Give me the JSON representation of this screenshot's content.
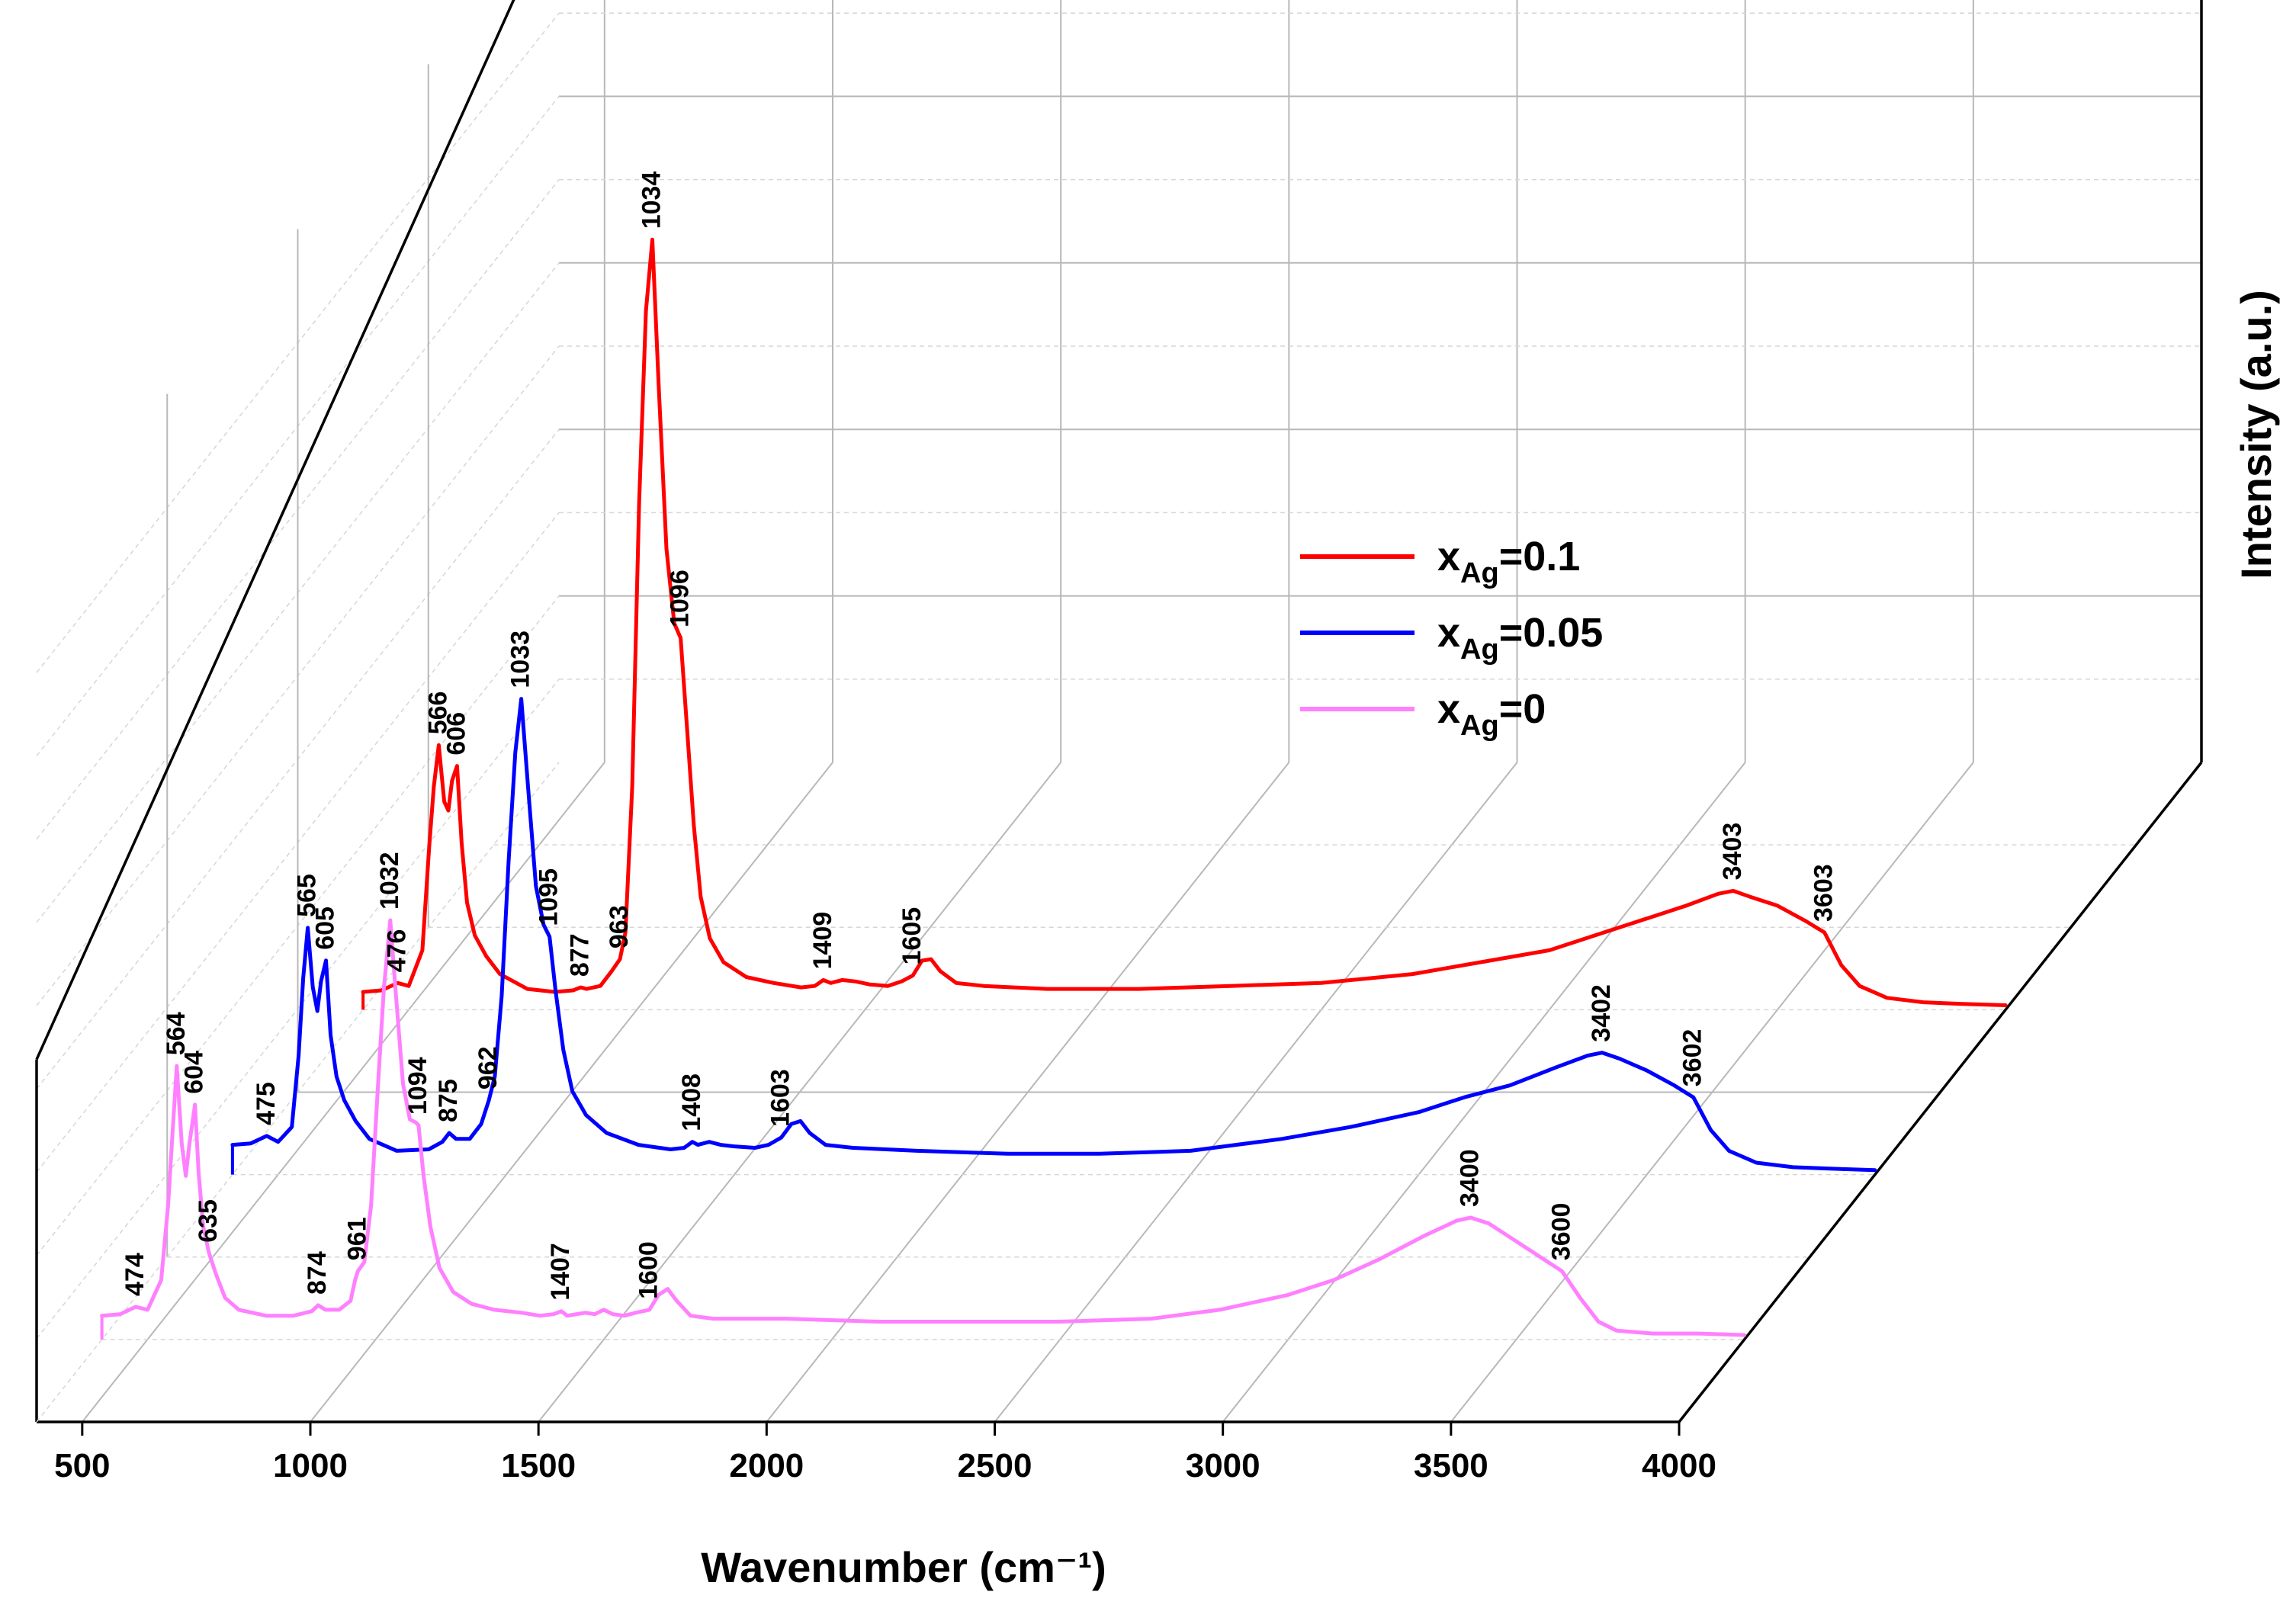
{
  "chart_data": {
    "type": "line",
    "style": "3d-waterfall",
    "xlabel": "Wavenumber (cm⁻¹)",
    "ylabel": "Intensity (a.u.)",
    "xlim": [
      400,
      4000
    ],
    "xticks": [
      500,
      1000,
      1500,
      2000,
      2500,
      3000,
      3500,
      4000
    ],
    "legend_position": "center-right",
    "series": [
      {
        "key": "s0",
        "label": "x",
        "label_sub": "Ag",
        "label_value": "=0",
        "color": "#ff80ff",
        "depth": 0,
        "points": [
          [
            400,
            0.08
          ],
          [
            440,
            0.085
          ],
          [
            474,
            0.11
          ],
          [
            500,
            0.1
          ],
          [
            530,
            0.2
          ],
          [
            545,
            0.45
          ],
          [
            555,
            0.7
          ],
          [
            564,
            0.92
          ],
          [
            575,
            0.66
          ],
          [
            584,
            0.55
          ],
          [
            592,
            0.66
          ],
          [
            604,
            0.79
          ],
          [
            612,
            0.56
          ],
          [
            622,
            0.38
          ],
          [
            635,
            0.29
          ],
          [
            650,
            0.22
          ],
          [
            670,
            0.14
          ],
          [
            700,
            0.1
          ],
          [
            760,
            0.08
          ],
          [
            820,
            0.08
          ],
          [
            860,
            0.095
          ],
          [
            874,
            0.115
          ],
          [
            890,
            0.1
          ],
          [
            920,
            0.1
          ],
          [
            945,
            0.13
          ],
          [
            955,
            0.2
          ],
          [
            961,
            0.23
          ],
          [
            975,
            0.26
          ],
          [
            990,
            0.45
          ],
          [
            1005,
            0.85
          ],
          [
            1018,
            1.18
          ],
          [
            1032,
            1.41
          ],
          [
            1045,
            1.15
          ],
          [
            1060,
            0.86
          ],
          [
            1075,
            0.74
          ],
          [
            1088,
            0.73
          ],
          [
            1094,
            0.72
          ],
          [
            1105,
            0.55
          ],
          [
            1120,
            0.38
          ],
          [
            1140,
            0.24
          ],
          [
            1170,
            0.16
          ],
          [
            1210,
            0.12
          ],
          [
            1260,
            0.1
          ],
          [
            1320,
            0.09
          ],
          [
            1360,
            0.08
          ],
          [
            1390,
            0.085
          ],
          [
            1407,
            0.095
          ],
          [
            1420,
            0.08
          ],
          [
            1440,
            0.085
          ],
          [
            1460,
            0.09
          ],
          [
            1480,
            0.085
          ],
          [
            1500,
            0.1
          ],
          [
            1520,
            0.085
          ],
          [
            1545,
            0.08
          ],
          [
            1570,
            0.09
          ],
          [
            1600,
            0.1
          ],
          [
            1620,
            0.15
          ],
          [
            1640,
            0.17
          ],
          [
            1660,
            0.13
          ],
          [
            1690,
            0.08
          ],
          [
            1740,
            0.07
          ],
          [
            1900,
            0.07
          ],
          [
            2100,
            0.06
          ],
          [
            2300,
            0.06
          ],
          [
            2500,
            0.06
          ],
          [
            2700,
            0.07
          ],
          [
            2850,
            0.1
          ],
          [
            3000,
            0.15
          ],
          [
            3100,
            0.2
          ],
          [
            3200,
            0.27
          ],
          [
            3300,
            0.35
          ],
          [
            3370,
            0.4
          ],
          [
            3400,
            0.41
          ],
          [
            3440,
            0.39
          ],
          [
            3500,
            0.33
          ],
          [
            3560,
            0.27
          ],
          [
            3600,
            0.23
          ],
          [
            3640,
            0.14
          ],
          [
            3680,
            0.06
          ],
          [
            3720,
            0.03
          ],
          [
            3800,
            0.02
          ],
          [
            3900,
            0.02
          ],
          [
            4000,
            0.015
          ]
        ],
        "annotations": [
          {
            "text": "474",
            "x": 474
          },
          {
            "text": "564",
            "x": 564
          },
          {
            "text": "604",
            "x": 604
          },
          {
            "text": "635",
            "x": 635
          },
          {
            "text": "874",
            "x": 874
          },
          {
            "text": "961",
            "x": 961
          },
          {
            "text": "1032",
            "x": 1032
          },
          {
            "text": "1094",
            "x": 1094
          },
          {
            "text": "1407",
            "x": 1407
          },
          {
            "text": "1600",
            "x": 1600
          },
          {
            "text": "3400",
            "x": 3400
          },
          {
            "text": "3600",
            "x": 3600
          }
        ]
      },
      {
        "key": "s1",
        "label": "x",
        "label_sub": "Ag",
        "label_value": "=0.05",
        "color": "#0000ff",
        "depth": 1,
        "points": [
          [
            400,
            0.1
          ],
          [
            440,
            0.105
          ],
          [
            475,
            0.13
          ],
          [
            500,
            0.11
          ],
          [
            530,
            0.16
          ],
          [
            545,
            0.4
          ],
          [
            555,
            0.66
          ],
          [
            565,
            0.83
          ],
          [
            576,
            0.63
          ],
          [
            586,
            0.55
          ],
          [
            594,
            0.65
          ],
          [
            605,
            0.72
          ],
          [
            615,
            0.47
          ],
          [
            628,
            0.33
          ],
          [
            645,
            0.25
          ],
          [
            670,
            0.18
          ],
          [
            700,
            0.12
          ],
          [
            760,
            0.08
          ],
          [
            830,
            0.085
          ],
          [
            860,
            0.11
          ],
          [
            875,
            0.14
          ],
          [
            890,
            0.12
          ],
          [
            920,
            0.12
          ],
          [
            945,
            0.17
          ],
          [
            962,
            0.25
          ],
          [
            975,
            0.33
          ],
          [
            990,
            0.6
          ],
          [
            1005,
            1.05
          ],
          [
            1020,
            1.42
          ],
          [
            1033,
            1.6
          ],
          [
            1048,
            1.3
          ],
          [
            1065,
            0.97
          ],
          [
            1082,
            0.84
          ],
          [
            1095,
            0.8
          ],
          [
            1108,
            0.62
          ],
          [
            1125,
            0.42
          ],
          [
            1145,
            0.28
          ],
          [
            1175,
            0.2
          ],
          [
            1220,
            0.14
          ],
          [
            1290,
            0.1
          ],
          [
            1360,
            0.085
          ],
          [
            1390,
            0.09
          ],
          [
            1408,
            0.11
          ],
          [
            1420,
            0.1
          ],
          [
            1445,
            0.11
          ],
          [
            1470,
            0.1
          ],
          [
            1500,
            0.095
          ],
          [
            1545,
            0.09
          ],
          [
            1575,
            0.1
          ],
          [
            1603,
            0.125
          ],
          [
            1625,
            0.17
          ],
          [
            1645,
            0.18
          ],
          [
            1665,
            0.14
          ],
          [
            1700,
            0.1
          ],
          [
            1760,
            0.09
          ],
          [
            1900,
            0.08
          ],
          [
            2100,
            0.07
          ],
          [
            2300,
            0.07
          ],
          [
            2500,
            0.08
          ],
          [
            2700,
            0.12
          ],
          [
            2850,
            0.16
          ],
          [
            3000,
            0.21
          ],
          [
            3100,
            0.26
          ],
          [
            3200,
            0.3
          ],
          [
            3300,
            0.36
          ],
          [
            3370,
            0.4
          ],
          [
            3402,
            0.41
          ],
          [
            3440,
            0.39
          ],
          [
            3500,
            0.35
          ],
          [
            3560,
            0.3
          ],
          [
            3602,
            0.26
          ],
          [
            3640,
            0.15
          ],
          [
            3680,
            0.08
          ],
          [
            3740,
            0.04
          ],
          [
            3820,
            0.025
          ],
          [
            3900,
            0.02
          ],
          [
            4000,
            0.015
          ]
        ],
        "annotations": [
          {
            "text": "475",
            "x": 475
          },
          {
            "text": "565",
            "x": 565
          },
          {
            "text": "605",
            "x": 605
          },
          {
            "text": "875",
            "x": 875
          },
          {
            "text": "962",
            "x": 962
          },
          {
            "text": "1033",
            "x": 1033
          },
          {
            "text": "1095",
            "x": 1095
          },
          {
            "text": "1408",
            "x": 1408
          },
          {
            "text": "1603",
            "x": 1603
          },
          {
            "text": "3402",
            "x": 3402
          },
          {
            "text": "3602",
            "x": 3602
          }
        ]
      },
      {
        "key": "s2",
        "label": "x",
        "label_sub": "Ag",
        "label_value": "=0.1",
        "color": "#ff0000",
        "depth": 2,
        "points": [
          [
            400,
            0.06
          ],
          [
            440,
            0.065
          ],
          [
            476,
            0.09
          ],
          [
            500,
            0.08
          ],
          [
            530,
            0.2
          ],
          [
            545,
            0.55
          ],
          [
            555,
            0.75
          ],
          [
            566,
            0.89
          ],
          [
            578,
            0.7
          ],
          [
            587,
            0.67
          ],
          [
            595,
            0.77
          ],
          [
            606,
            0.82
          ],
          [
            616,
            0.56
          ],
          [
            628,
            0.36
          ],
          [
            645,
            0.25
          ],
          [
            670,
            0.18
          ],
          [
            700,
            0.12
          ],
          [
            760,
            0.07
          ],
          [
            820,
            0.06
          ],
          [
            860,
            0.065
          ],
          [
            877,
            0.075
          ],
          [
            890,
            0.07
          ],
          [
            920,
            0.08
          ],
          [
            945,
            0.13
          ],
          [
            963,
            0.17
          ],
          [
            975,
            0.26
          ],
          [
            990,
            0.75
          ],
          [
            1005,
            1.7
          ],
          [
            1020,
            2.35
          ],
          [
            1034,
            2.59
          ],
          [
            1048,
            2.1
          ],
          [
            1065,
            1.55
          ],
          [
            1082,
            1.3
          ],
          [
            1096,
            1.25
          ],
          [
            1110,
            0.95
          ],
          [
            1125,
            0.62
          ],
          [
            1140,
            0.38
          ],
          [
            1160,
            0.24
          ],
          [
            1190,
            0.16
          ],
          [
            1240,
            0.11
          ],
          [
            1300,
            0.09
          ],
          [
            1360,
            0.075
          ],
          [
            1390,
            0.08
          ],
          [
            1409,
            0.1
          ],
          [
            1425,
            0.09
          ],
          [
            1450,
            0.1
          ],
          [
            1480,
            0.095
          ],
          [
            1510,
            0.085
          ],
          [
            1550,
            0.08
          ],
          [
            1580,
            0.095
          ],
          [
            1605,
            0.115
          ],
          [
            1625,
            0.165
          ],
          [
            1645,
            0.17
          ],
          [
            1665,
            0.13
          ],
          [
            1700,
            0.09
          ],
          [
            1760,
            0.08
          ],
          [
            1900,
            0.07
          ],
          [
            2100,
            0.07
          ],
          [
            2300,
            0.08
          ],
          [
            2500,
            0.09
          ],
          [
            2700,
            0.12
          ],
          [
            2850,
            0.16
          ],
          [
            3000,
            0.2
          ],
          [
            3100,
            0.25
          ],
          [
            3200,
            0.3
          ],
          [
            3300,
            0.35
          ],
          [
            3370,
            0.39
          ],
          [
            3403,
            0.4
          ],
          [
            3440,
            0.38
          ],
          [
            3500,
            0.35
          ],
          [
            3560,
            0.3
          ],
          [
            3603,
            0.26
          ],
          [
            3640,
            0.15
          ],
          [
            3680,
            0.08
          ],
          [
            3740,
            0.04
          ],
          [
            3820,
            0.025
          ],
          [
            3900,
            0.02
          ],
          [
            4000,
            0.015
          ]
        ],
        "annotations": [
          {
            "text": "476",
            "x": 476
          },
          {
            "text": "566",
            "x": 566
          },
          {
            "text": "606",
            "x": 606
          },
          {
            "text": "877",
            "x": 877
          },
          {
            "text": "963",
            "x": 963
          },
          {
            "text": "1034",
            "x": 1034
          },
          {
            "text": "1096",
            "x": 1096
          },
          {
            "text": "1409",
            "x": 1409
          },
          {
            "text": "1605",
            "x": 1605
          },
          {
            "text": "3403",
            "x": 3403
          },
          {
            "text": "3603",
            "x": 3603
          }
        ]
      }
    ]
  }
}
